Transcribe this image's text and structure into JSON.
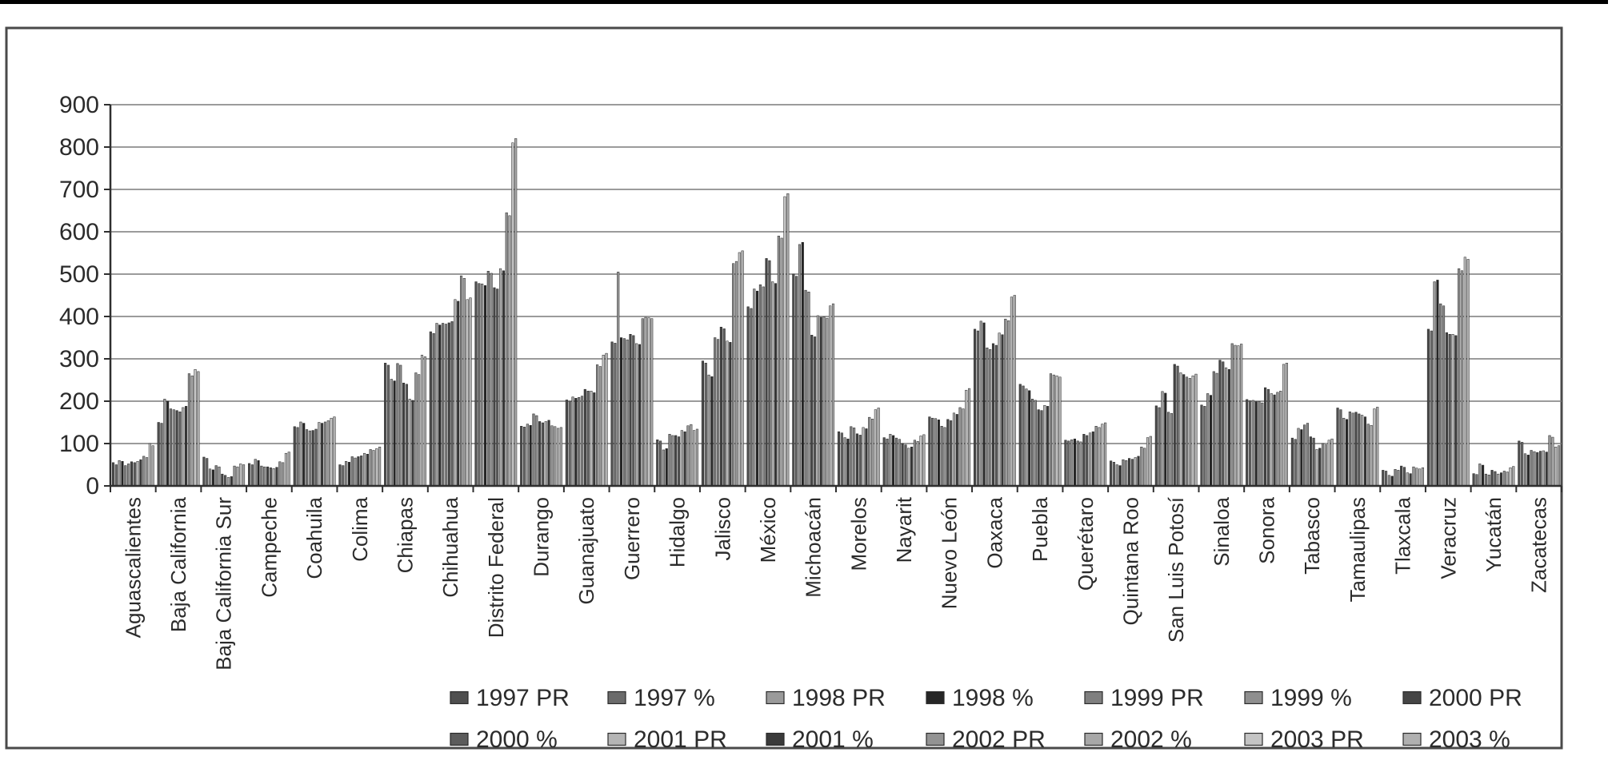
{
  "figure": {
    "background": "#ffffff",
    "border_color": "#4a4a4a",
    "top_bar_color": "#000000"
  },
  "chart_data": {
    "type": "bar",
    "title": "",
    "xlabel": "",
    "ylabel": "",
    "ylim": [
      0,
      900
    ],
    "yticks": [
      0,
      100,
      200,
      300,
      400,
      500,
      600,
      700,
      800,
      900
    ],
    "grid": true,
    "legend_position": "bottom",
    "axis_color": "#2f2f2f",
    "gridline_color": "#7a7a7a",
    "categories": [
      "Aguascalientes",
      "Baja California",
      "Baja California Sur",
      "Campeche",
      "Coahuila",
      "Colima",
      "Chiapas",
      "Chihuahua",
      "Distrito Federal",
      "Durango",
      "Guanajuato",
      "Guerrero",
      "Hidalgo",
      "Jalisco",
      "México",
      "Michoacán",
      "Morelos",
      "Nayarit",
      "Nuevo León",
      "Oaxaca",
      "Puebla",
      "Querétaro",
      "Quintana Roo",
      "San Luis Potosí",
      "Sinaloa",
      "Sonora",
      "Tabasco",
      "Tamaulipas",
      "Tlaxcala",
      "Veracruz",
      "Yucatán",
      "Zacatecas"
    ],
    "series": [
      {
        "name": "1997 PR",
        "color": "#4f4f4f",
        "values": [
          55,
          150,
          68,
          53,
          140,
          50,
          290,
          364,
          482,
          141,
          203,
          340,
          109,
          295,
          423,
          500,
          128,
          114,
          163,
          370,
          240,
          108,
          59,
          189,
          191,
          204,
          113,
          184,
          37,
          370,
          29,
          106
        ]
      },
      {
        "name": "1997 %",
        "color": "#6b6b6b",
        "values": [
          50,
          148,
          65,
          50,
          138,
          48,
          285,
          360,
          478,
          139,
          200,
          337,
          106,
          290,
          419,
          495,
          125,
          111,
          160,
          366,
          236,
          106,
          56,
          185,
          188,
          201,
          110,
          180,
          35,
          366,
          27,
          103
        ]
      },
      {
        "name": "1998 PR",
        "color": "#9a9a9a",
        "values": [
          60,
          205,
          40,
          63,
          151,
          58,
          252,
          384,
          477,
          146,
          210,
          505,
          85,
          262,
          465,
          570,
          114,
          122,
          159,
          389,
          229,
          109,
          50,
          223,
          218,
          202,
          136,
          160,
          25,
          482,
          52,
          76
        ]
      },
      {
        "name": "1998 %",
        "color": "#262626",
        "values": [
          58,
          200,
          38,
          60,
          148,
          56,
          248,
          380,
          473,
          143,
          207,
          350,
          88,
          258,
          460,
          575,
          111,
          119,
          156,
          385,
          225,
          111,
          48,
          219,
          214,
          199,
          133,
          157,
          23,
          486,
          49,
          73
        ]
      },
      {
        "name": "1999 PR",
        "color": "#7f7f7f",
        "values": [
          48,
          182,
          48,
          47,
          133,
          69,
          289,
          384,
          507,
          170,
          209,
          348,
          122,
          350,
          475,
          462,
          140,
          113,
          141,
          326,
          205,
          106,
          62,
          174,
          270,
          199,
          144,
          175,
          39,
          430,
          28,
          84
        ]
      },
      {
        "name": "1999 %",
        "color": "#8f8f8f",
        "values": [
          52,
          180,
          45,
          45,
          130,
          66,
          285,
          382,
          502,
          166,
          212,
          345,
          119,
          346,
          470,
          458,
          137,
          110,
          138,
          322,
          202,
          104,
          60,
          171,
          266,
          196,
          148,
          172,
          37,
          425,
          26,
          81
        ]
      },
      {
        "name": "2000 PR",
        "color": "#454545",
        "values": [
          57,
          178,
          28,
          45,
          131,
          69,
          243,
          385,
          468,
          152,
          228,
          358,
          119,
          375,
          537,
          356,
          123,
          100,
          157,
          336,
          180,
          122,
          65,
          287,
          297,
          232,
          116,
          174,
          47,
          362,
          37,
          79
        ]
      },
      {
        "name": "2000 %",
        "color": "#5c5c5c",
        "values": [
          55,
          175,
          25,
          43,
          134,
          71,
          240,
          388,
          465,
          149,
          224,
          355,
          116,
          371,
          532,
          352,
          120,
          97,
          154,
          332,
          178,
          119,
          63,
          283,
          293,
          228,
          113,
          170,
          44,
          358,
          34,
          82
        ]
      },
      {
        "name": "2001 PR",
        "color": "#b5b5b5",
        "values": [
          58,
          185,
          20,
          41,
          150,
          77,
          205,
          440,
          513,
          152,
          224,
          336,
          131,
          342,
          482,
          402,
          138,
          89,
          172,
          361,
          190,
          125,
          67,
          267,
          279,
          218,
          86,
          167,
          31,
          358,
          28,
          83
        ]
      },
      {
        "name": "2001 %",
        "color": "#3a3a3a",
        "values": [
          62,
          188,
          22,
          44,
          148,
          75,
          202,
          436,
          508,
          155,
          220,
          334,
          128,
          339,
          478,
          398,
          135,
          92,
          169,
          357,
          188,
          128,
          70,
          263,
          275,
          215,
          89,
          163,
          29,
          355,
          31,
          80
        ]
      },
      {
        "name": "2002 PR",
        "color": "#939393",
        "values": [
          70,
          265,
          47,
          57,
          151,
          86,
          267,
          496,
          645,
          142,
          286,
          395,
          142,
          525,
          590,
          399,
          162,
          108,
          185,
          394,
          265,
          141,
          92,
          257,
          336,
          221,
          100,
          146,
          45,
          513,
          35,
          119
        ]
      },
      {
        "name": "2002 %",
        "color": "#a8a8a8",
        "values": [
          67,
          260,
          45,
          55,
          154,
          84,
          263,
          490,
          638,
          140,
          282,
          398,
          145,
          530,
          585,
          396,
          158,
          105,
          182,
          390,
          262,
          138,
          89,
          254,
          332,
          224,
          97,
          143,
          42,
          508,
          33,
          115
        ]
      },
      {
        "name": "2003 PR",
        "color": "#c4c4c4",
        "values": [
          100,
          275,
          52,
          77,
          160,
          88,
          309,
          440,
          810,
          136,
          309,
          397,
          131,
          551,
          683,
          425,
          180,
          118,
          226,
          446,
          260,
          146,
          114,
          260,
          331,
          287,
          108,
          182,
          40,
          540,
          43,
          92
        ]
      },
      {
        "name": "2003 %",
        "color": "#b0b0b0",
        "values": [
          95,
          270,
          50,
          80,
          163,
          92,
          305,
          444,
          820,
          138,
          313,
          395,
          134,
          555,
          690,
          430,
          184,
          121,
          230,
          450,
          257,
          149,
          117,
          264,
          335,
          290,
          111,
          186,
          43,
          535,
          46,
          95
        ]
      }
    ]
  }
}
